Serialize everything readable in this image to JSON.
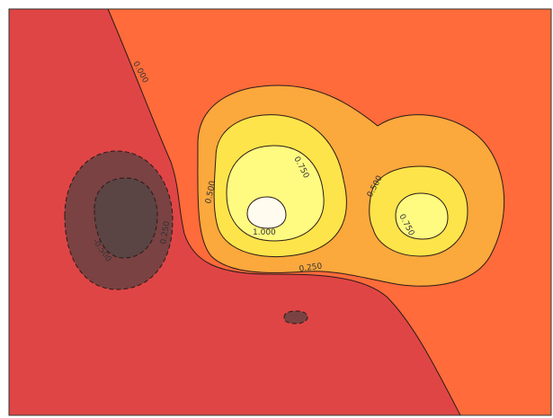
{
  "chart_data": {
    "type": "contour",
    "title": "",
    "xlabel": "",
    "ylabel": "",
    "grid": false,
    "legend": "none",
    "levels": [
      -0.5,
      -0.25,
      0.0,
      0.25,
      0.5,
      0.75,
      1.0
    ],
    "contour_labels": [
      "0.000",
      "0.250",
      "0.500",
      "0.750",
      "1.000",
      "-0.500",
      "0.250",
      "0.500",
      "0.750"
    ],
    "fill_colors": {
      "below_-0.5": "#5a4444",
      "-0.5_to_-0.25": "#7a4242",
      "-0.25_to_0.0": "#e04545",
      "0.0_to_0.25": "#ff6b3a",
      "0.25_to_0.5": "#fba83c",
      "0.5_to_0.75": "#fde44a",
      "0.75_to_1.0": "#fffa80",
      "above_1.0": "#fffbee"
    },
    "line_color": "#2a1a1a"
  }
}
